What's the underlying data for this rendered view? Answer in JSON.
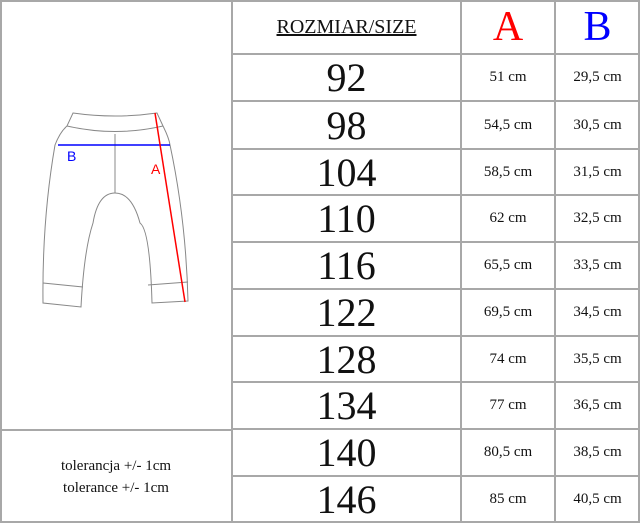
{
  "header": {
    "size_label": "ROZMIAR/SIZE",
    "col_a": "A",
    "col_b": "B"
  },
  "colors": {
    "a": "#ff0000",
    "b": "#0000ff"
  },
  "diagram": {
    "label_a": "A",
    "label_b": "B"
  },
  "rows": [
    {
      "size": "92",
      "a": "51 cm",
      "b": "29,5 cm"
    },
    {
      "size": "98",
      "a": "54,5 cm",
      "b": "30,5 cm"
    },
    {
      "size": "104",
      "a": "58,5 cm",
      "b": "31,5 cm"
    },
    {
      "size": "110",
      "a": "62 cm",
      "b": "32,5 cm"
    },
    {
      "size": "116",
      "a": "65,5 cm",
      "b": "33,5 cm"
    },
    {
      "size": "122",
      "a": "69,5 cm",
      "b": "34,5 cm"
    },
    {
      "size": "128",
      "a": "74 cm",
      "b": "35,5 cm"
    },
    {
      "size": "134",
      "a": "77 cm",
      "b": "36,5 cm"
    },
    {
      "size": "140",
      "a": "80,5 cm",
      "b": "38,5 cm"
    },
    {
      "size": "146",
      "a": "85 cm",
      "b": "40,5 cm"
    }
  ],
  "tolerance": {
    "pl": "tolerancja +/- 1cm",
    "en": "tolerance +/- 1cm"
  }
}
